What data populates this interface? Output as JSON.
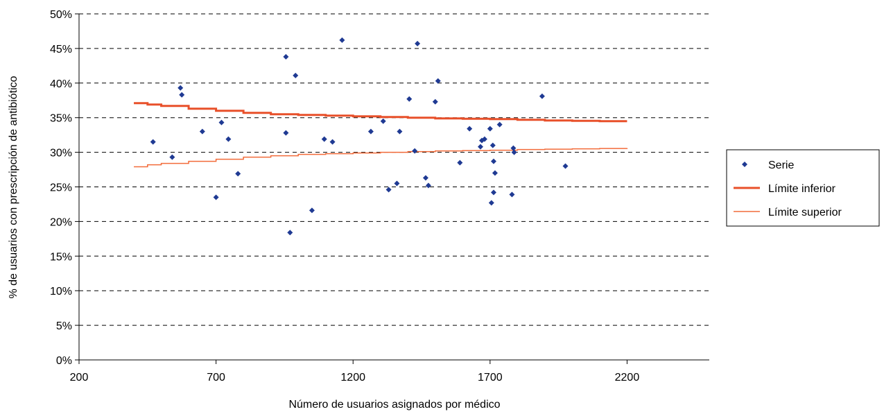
{
  "chart_data": {
    "type": "scatter",
    "xlabel": "Número de usuarios asignados por médico",
    "ylabel": "% de usuarios con prescripción de antibiótico",
    "xlim": [
      200,
      2500
    ],
    "ylim": [
      0,
      50
    ],
    "x_ticks": [
      "200",
      "700",
      "1200",
      "1700",
      "2200"
    ],
    "y_ticks": [
      "0%",
      "5%",
      "10%",
      "15%",
      "20%",
      "25%",
      "30%",
      "35%",
      "40%",
      "45%",
      "50%"
    ],
    "grid": "horizontal dashed",
    "legend_position": "right",
    "series": [
      {
        "name": "Serie",
        "kind": "scatter",
        "color": "#1f3a93",
        "points": [
          [
            470,
            31.5
          ],
          [
            540,
            29.3
          ],
          [
            570,
            39.3
          ],
          [
            575,
            38.3
          ],
          [
            650,
            33.0
          ],
          [
            700,
            23.5
          ],
          [
            720,
            34.3
          ],
          [
            745,
            31.9
          ],
          [
            780,
            26.9
          ],
          [
            955,
            43.8
          ],
          [
            955,
            32.8
          ],
          [
            970,
            18.4
          ],
          [
            990,
            41.1
          ],
          [
            1050,
            21.6
          ],
          [
            1095,
            31.9
          ],
          [
            1125,
            31.5
          ],
          [
            1160,
            46.2
          ],
          [
            1265,
            33.0
          ],
          [
            1310,
            34.5
          ],
          [
            1330,
            24.6
          ],
          [
            1360,
            25.5
          ],
          [
            1370,
            33.0
          ],
          [
            1405,
            37.7
          ],
          [
            1425,
            30.2
          ],
          [
            1435,
            45.7
          ],
          [
            1465,
            26.3
          ],
          [
            1475,
            25.2
          ],
          [
            1500,
            37.3
          ],
          [
            1510,
            40.3
          ],
          [
            1590,
            28.5
          ],
          [
            1625,
            33.4
          ],
          [
            1665,
            30.8
          ],
          [
            1670,
            31.7
          ],
          [
            1680,
            31.9
          ],
          [
            1700,
            33.4
          ],
          [
            1705,
            22.7
          ],
          [
            1710,
            31.0
          ],
          [
            1713,
            28.7
          ],
          [
            1713,
            24.2
          ],
          [
            1718,
            27.0
          ],
          [
            1735,
            34.0
          ],
          [
            1780,
            23.9
          ],
          [
            1785,
            30.6
          ],
          [
            1788,
            30.0
          ],
          [
            1890,
            38.1
          ],
          [
            1975,
            28.0
          ]
        ]
      },
      {
        "name": "Límite inferior",
        "kind": "line",
        "color": "#e8502a",
        "points": [
          [
            400,
            37.1
          ],
          [
            450,
            36.9
          ],
          [
            500,
            36.7
          ],
          [
            600,
            36.3
          ],
          [
            700,
            36.0
          ],
          [
            800,
            35.7
          ],
          [
            900,
            35.5
          ],
          [
            1000,
            35.4
          ],
          [
            1100,
            35.3
          ],
          [
            1200,
            35.2
          ],
          [
            1300,
            35.1
          ],
          [
            1400,
            35.0
          ],
          [
            1500,
            34.9
          ],
          [
            1600,
            34.85
          ],
          [
            1700,
            34.8
          ],
          [
            1800,
            34.7
          ],
          [
            1900,
            34.6
          ],
          [
            2000,
            34.55
          ],
          [
            2100,
            34.5
          ],
          [
            2200,
            34.5
          ]
        ]
      },
      {
        "name": "Límite superior",
        "kind": "line",
        "color": "#f26b3a",
        "points": [
          [
            400,
            27.9
          ],
          [
            450,
            28.2
          ],
          [
            500,
            28.4
          ],
          [
            600,
            28.7
          ],
          [
            700,
            29.0
          ],
          [
            800,
            29.3
          ],
          [
            900,
            29.5
          ],
          [
            1000,
            29.7
          ],
          [
            1100,
            29.8
          ],
          [
            1200,
            29.9
          ],
          [
            1300,
            30.0
          ],
          [
            1400,
            30.1
          ],
          [
            1500,
            30.2
          ],
          [
            1600,
            30.25
          ],
          [
            1700,
            30.3
          ],
          [
            1800,
            30.4
          ],
          [
            1900,
            30.45
          ],
          [
            2000,
            30.5
          ],
          [
            2100,
            30.55
          ],
          [
            2200,
            30.6
          ]
        ]
      }
    ]
  }
}
